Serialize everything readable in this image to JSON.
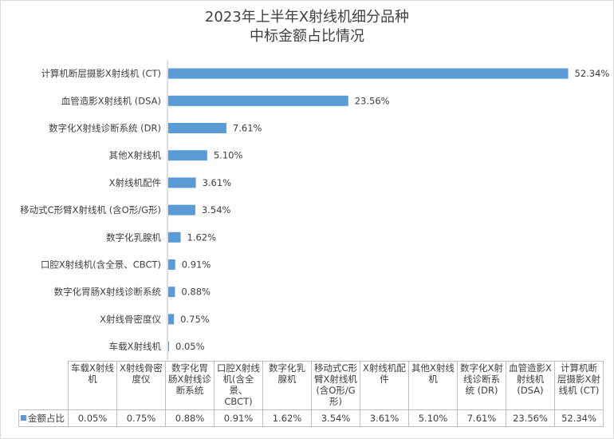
{
  "title_line1": "2023年上半年X射线机细分品种",
  "title_line2": "中标金额占比情况",
  "colors": {
    "bar": "#5b9bd5",
    "axis": "#bfbfbf"
  },
  "chart_data": {
    "type": "bar",
    "orientation": "horizontal",
    "title": "2023年上半年X射线机细分品种中标金额占比情况",
    "series": [
      {
        "name": "金额占比",
        "values": [
          52.34,
          23.56,
          7.61,
          5.1,
          3.61,
          3.54,
          1.62,
          0.91,
          0.88,
          0.75,
          0.05
        ]
      }
    ],
    "categories": [
      "计算机断层摄影X射线机 (CT)",
      "血管造影X射线机 (DSA)",
      "数字化X射线诊断系统 (DR)",
      "其他X射线机",
      "X射线机配件",
      "移动式C形臂X射线机 (含O形/G形)",
      "数字化乳腺机",
      "口腔X射线机(含全景、CBCT)",
      "数字化胃肠X射线诊断系统",
      "X射线骨密度仪",
      "车载X射线机"
    ],
    "data_labels": [
      "52.34%",
      "23.56%",
      "7.61%",
      "5.10%",
      "3.61%",
      "3.54%",
      "1.62%",
      "0.91%",
      "0.88%",
      "0.75%",
      "0.05%"
    ],
    "xlim": [
      0,
      55
    ],
    "grid": false,
    "legend": "data-table"
  },
  "table": {
    "series_label": "金额占比",
    "headers": [
      "车载X射线机",
      "X射线骨密度仪",
      "数字化胃肠X射线诊断系统",
      "口腔X射线机(含全景、CBCT)",
      "数字化乳腺机",
      "移动式C形臂X射线机(含O形/G形)",
      "X射线机配件",
      "其他X射线机",
      "数字化X射线诊断系统 (DR)",
      "血管造影X射线机 (DSA)",
      "计算机断层摄影X射线机 (CT)"
    ],
    "values": [
      "0.05%",
      "0.75%",
      "0.88%",
      "0.91%",
      "1.62%",
      "3.54%",
      "3.61%",
      "5.10%",
      "7.61%",
      "23.56%",
      "52.34%"
    ]
  }
}
